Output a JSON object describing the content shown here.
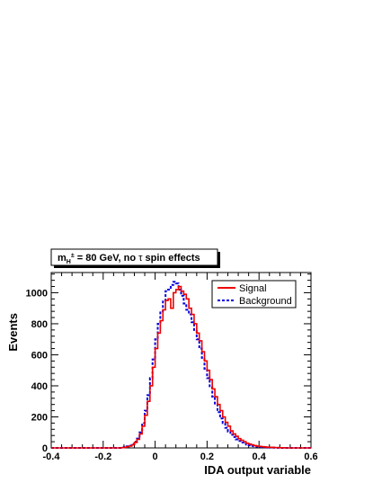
{
  "chart_data": {
    "type": "line",
    "title_parts": {
      "prefix": "m",
      "subscript": "H",
      "superscript": "±",
      "middle": " = 80 GeV, no ",
      "tau": "τ",
      "suffix": " spin effects"
    },
    "xlabel": "IDA output variable",
    "ylabel": "Events",
    "xlim": [
      -0.4,
      0.6
    ],
    "ylim": [
      0,
      1130
    ],
    "x_ticks": [
      -0.4,
      -0.2,
      0,
      0.2,
      0.4,
      0.6
    ],
    "x_tick_labels": [
      "-0.4",
      "-0.2",
      "0",
      "0.2",
      "0.4",
      "0.6"
    ],
    "y_ticks": [
      0,
      200,
      400,
      600,
      800,
      1000
    ],
    "y_tick_labels": [
      "0",
      "200",
      "400",
      "600",
      "800",
      "1000"
    ],
    "legend_position": "top-right",
    "bin_edges_start": -0.4,
    "bin_width": 0.01,
    "series": [
      {
        "name": "Signal",
        "color": "#ee0000",
        "style": "solid",
        "values": [
          0,
          0,
          0,
          0,
          0,
          0,
          0,
          0,
          0,
          0,
          0,
          0,
          0,
          0,
          0,
          0,
          0,
          0,
          0,
          0,
          0,
          0,
          0,
          0,
          0,
          0,
          0,
          2,
          4,
          8,
          12,
          20,
          35,
          55,
          90,
          140,
          210,
          300,
          400,
          520,
          640,
          740,
          820,
          890,
          950,
          960,
          900,
          1000,
          1020,
          1040,
          1010,
          990,
          960,
          900,
          860,
          800,
          740,
          690,
          620,
          560,
          500,
          440,
          380,
          330,
          280,
          240,
          200,
          165,
          140,
          110,
          90,
          75,
          60,
          50,
          40,
          30,
          25,
          20,
          15,
          12,
          10,
          8,
          6,
          5,
          4,
          3,
          2,
          2,
          1,
          1,
          0,
          0,
          0,
          0,
          0,
          0,
          0,
          0,
          0,
          0
        ]
      },
      {
        "name": "Background",
        "color": "#0000dd",
        "style": "dashed",
        "values": [
          0,
          0,
          0,
          0,
          0,
          0,
          0,
          0,
          0,
          0,
          0,
          0,
          0,
          0,
          0,
          0,
          0,
          0,
          0,
          0,
          0,
          0,
          0,
          0,
          0,
          0,
          0,
          3,
          6,
          10,
          15,
          25,
          40,
          60,
          100,
          160,
          240,
          340,
          450,
          570,
          700,
          800,
          880,
          950,
          1010,
          1020,
          1050,
          1070,
          1060,
          1020,
          980,
          930,
          890,
          860,
          810,
          760,
          700,
          640,
          580,
          510,
          450,
          390,
          330,
          280,
          230,
          190,
          160,
          130,
          105,
          85,
          70,
          55,
          45,
          35,
          28,
          22,
          17,
          13,
          10,
          8,
          6,
          5,
          4,
          3,
          2,
          2,
          1,
          1,
          0,
          0,
          0,
          0,
          0,
          0,
          0,
          0,
          0,
          0,
          0,
          0
        ]
      }
    ]
  }
}
